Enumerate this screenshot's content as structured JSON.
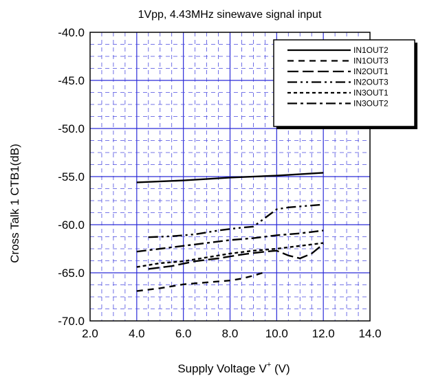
{
  "chart_data": {
    "type": "line",
    "title": "1Vpp, 4.43MHz sinewave signal input",
    "xlabel_main": "Supply Voltage  V",
    "xlabel_sup": "+",
    "xlabel_unit": " (V)",
    "ylabel": "Cross Talk 1   CTB1(dB)",
    "xlim": [
      2.0,
      14.0
    ],
    "ylim": [
      -70.0,
      -40.0
    ],
    "x_ticks": [
      "2.0",
      "4.0",
      "6.0",
      "8.0",
      "10.0",
      "12.0",
      "14.0"
    ],
    "y_ticks": [
      "-40.0",
      "-45.0",
      "-50.0",
      "-55.0",
      "-60.0",
      "-65.0",
      "-70.0"
    ],
    "grid": true,
    "legend_position": "top-right",
    "series": [
      {
        "name": "IN1OUT2",
        "dash": "solid",
        "x": [
          4.0,
          6.0,
          8.0,
          10.0,
          12.0
        ],
        "y": [
          -55.6,
          -55.4,
          -55.1,
          -54.9,
          -54.6
        ]
      },
      {
        "name": "IN1OUT3",
        "dash": "dash",
        "x": [
          4.0,
          5.0,
          6.0,
          7.0,
          8.0,
          8.5,
          9.0,
          9.4
        ],
        "y": [
          -66.9,
          -66.6,
          -66.2,
          -66.0,
          -65.8,
          -65.6,
          -65.3,
          -65.0
        ]
      },
      {
        "name": "IN2OUT1",
        "dash": "longdash",
        "x": [
          4.5,
          5.5,
          6.5,
          7.5,
          8.5,
          9.5,
          10.0,
          10.5,
          11.0,
          11.5,
          12.0
        ],
        "y": [
          -64.6,
          -64.3,
          -63.8,
          -63.5,
          -63.1,
          -62.8,
          -62.7,
          -63.2,
          -63.5,
          -63.0,
          -62.0
        ]
      },
      {
        "name": "IN2OUT3",
        "dash": "dashdotdot",
        "x": [
          4.5,
          5.5,
          6.5,
          7.5,
          8.5,
          9.0,
          9.5,
          10.0,
          10.5,
          11.0,
          12.0
        ],
        "y": [
          -61.3,
          -61.2,
          -61.0,
          -60.6,
          -60.3,
          -60.2,
          -59.3,
          -58.4,
          -58.2,
          -58.1,
          -57.9
        ]
      },
      {
        "name": "IN3OUT1",
        "dash": "shortdash",
        "x": [
          4.0,
          5.0,
          6.0,
          7.0,
          8.0,
          9.0,
          10.0,
          11.0,
          12.0
        ],
        "y": [
          -64.4,
          -64.0,
          -63.8,
          -63.4,
          -63.0,
          -62.7,
          -62.5,
          -62.2,
          -61.9
        ]
      },
      {
        "name": "IN3OUT2",
        "dash": "dashdot",
        "x": [
          4.0,
          5.0,
          6.0,
          7.0,
          8.0,
          9.0,
          10.0,
          11.0,
          12.0
        ],
        "y": [
          -62.8,
          -62.5,
          -62.2,
          -61.9,
          -61.6,
          -61.4,
          -61.1,
          -60.9,
          -60.6
        ]
      }
    ]
  },
  "colors": {
    "major_grid": "#2a2ad8",
    "minor_grid": "#4a4ae0",
    "series": "#000000"
  }
}
